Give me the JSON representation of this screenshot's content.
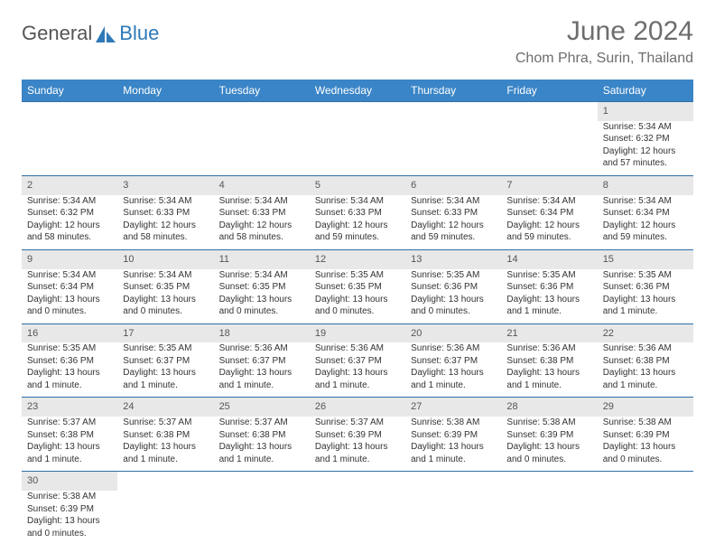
{
  "brand": {
    "part1": "General",
    "part2": "Blue"
  },
  "header": {
    "month": "June 2024",
    "location": "Chom Phra, Surin, Thailand"
  },
  "colors": {
    "header_bg": "#3a85c7",
    "header_fg": "#ffffff",
    "daynum_bg": "#e8e8e8",
    "border": "#2f6fa8",
    "brand_blue": "#2e79b8",
    "text": "#333333",
    "muted": "#6d6d6d"
  },
  "weekdays": [
    "Sunday",
    "Monday",
    "Tuesday",
    "Wednesday",
    "Thursday",
    "Friday",
    "Saturday"
  ],
  "weeks": [
    [
      null,
      null,
      null,
      null,
      null,
      null,
      {
        "n": "1",
        "sr": "5:34 AM",
        "ss": "6:32 PM",
        "dl": "12 hours and 57 minutes."
      }
    ],
    [
      {
        "n": "2",
        "sr": "5:34 AM",
        "ss": "6:32 PM",
        "dl": "12 hours and 58 minutes."
      },
      {
        "n": "3",
        "sr": "5:34 AM",
        "ss": "6:33 PM",
        "dl": "12 hours and 58 minutes."
      },
      {
        "n": "4",
        "sr": "5:34 AM",
        "ss": "6:33 PM",
        "dl": "12 hours and 58 minutes."
      },
      {
        "n": "5",
        "sr": "5:34 AM",
        "ss": "6:33 PM",
        "dl": "12 hours and 59 minutes."
      },
      {
        "n": "6",
        "sr": "5:34 AM",
        "ss": "6:33 PM",
        "dl": "12 hours and 59 minutes."
      },
      {
        "n": "7",
        "sr": "5:34 AM",
        "ss": "6:34 PM",
        "dl": "12 hours and 59 minutes."
      },
      {
        "n": "8",
        "sr": "5:34 AM",
        "ss": "6:34 PM",
        "dl": "12 hours and 59 minutes."
      }
    ],
    [
      {
        "n": "9",
        "sr": "5:34 AM",
        "ss": "6:34 PM",
        "dl": "13 hours and 0 minutes."
      },
      {
        "n": "10",
        "sr": "5:34 AM",
        "ss": "6:35 PM",
        "dl": "13 hours and 0 minutes."
      },
      {
        "n": "11",
        "sr": "5:34 AM",
        "ss": "6:35 PM",
        "dl": "13 hours and 0 minutes."
      },
      {
        "n": "12",
        "sr": "5:35 AM",
        "ss": "6:35 PM",
        "dl": "13 hours and 0 minutes."
      },
      {
        "n": "13",
        "sr": "5:35 AM",
        "ss": "6:36 PM",
        "dl": "13 hours and 0 minutes."
      },
      {
        "n": "14",
        "sr": "5:35 AM",
        "ss": "6:36 PM",
        "dl": "13 hours and 1 minute."
      },
      {
        "n": "15",
        "sr": "5:35 AM",
        "ss": "6:36 PM",
        "dl": "13 hours and 1 minute."
      }
    ],
    [
      {
        "n": "16",
        "sr": "5:35 AM",
        "ss": "6:36 PM",
        "dl": "13 hours and 1 minute."
      },
      {
        "n": "17",
        "sr": "5:35 AM",
        "ss": "6:37 PM",
        "dl": "13 hours and 1 minute."
      },
      {
        "n": "18",
        "sr": "5:36 AM",
        "ss": "6:37 PM",
        "dl": "13 hours and 1 minute."
      },
      {
        "n": "19",
        "sr": "5:36 AM",
        "ss": "6:37 PM",
        "dl": "13 hours and 1 minute."
      },
      {
        "n": "20",
        "sr": "5:36 AM",
        "ss": "6:37 PM",
        "dl": "13 hours and 1 minute."
      },
      {
        "n": "21",
        "sr": "5:36 AM",
        "ss": "6:38 PM",
        "dl": "13 hours and 1 minute."
      },
      {
        "n": "22",
        "sr": "5:36 AM",
        "ss": "6:38 PM",
        "dl": "13 hours and 1 minute."
      }
    ],
    [
      {
        "n": "23",
        "sr": "5:37 AM",
        "ss": "6:38 PM",
        "dl": "13 hours and 1 minute."
      },
      {
        "n": "24",
        "sr": "5:37 AM",
        "ss": "6:38 PM",
        "dl": "13 hours and 1 minute."
      },
      {
        "n": "25",
        "sr": "5:37 AM",
        "ss": "6:38 PM",
        "dl": "13 hours and 1 minute."
      },
      {
        "n": "26",
        "sr": "5:37 AM",
        "ss": "6:39 PM",
        "dl": "13 hours and 1 minute."
      },
      {
        "n": "27",
        "sr": "5:38 AM",
        "ss": "6:39 PM",
        "dl": "13 hours and 1 minute."
      },
      {
        "n": "28",
        "sr": "5:38 AM",
        "ss": "6:39 PM",
        "dl": "13 hours and 0 minutes."
      },
      {
        "n": "29",
        "sr": "5:38 AM",
        "ss": "6:39 PM",
        "dl": "13 hours and 0 minutes."
      }
    ],
    [
      {
        "n": "30",
        "sr": "5:38 AM",
        "ss": "6:39 PM",
        "dl": "13 hours and 0 minutes."
      },
      null,
      null,
      null,
      null,
      null,
      null
    ]
  ],
  "labels": {
    "sunrise": "Sunrise:",
    "sunset": "Sunset:",
    "daylight": "Daylight:"
  }
}
